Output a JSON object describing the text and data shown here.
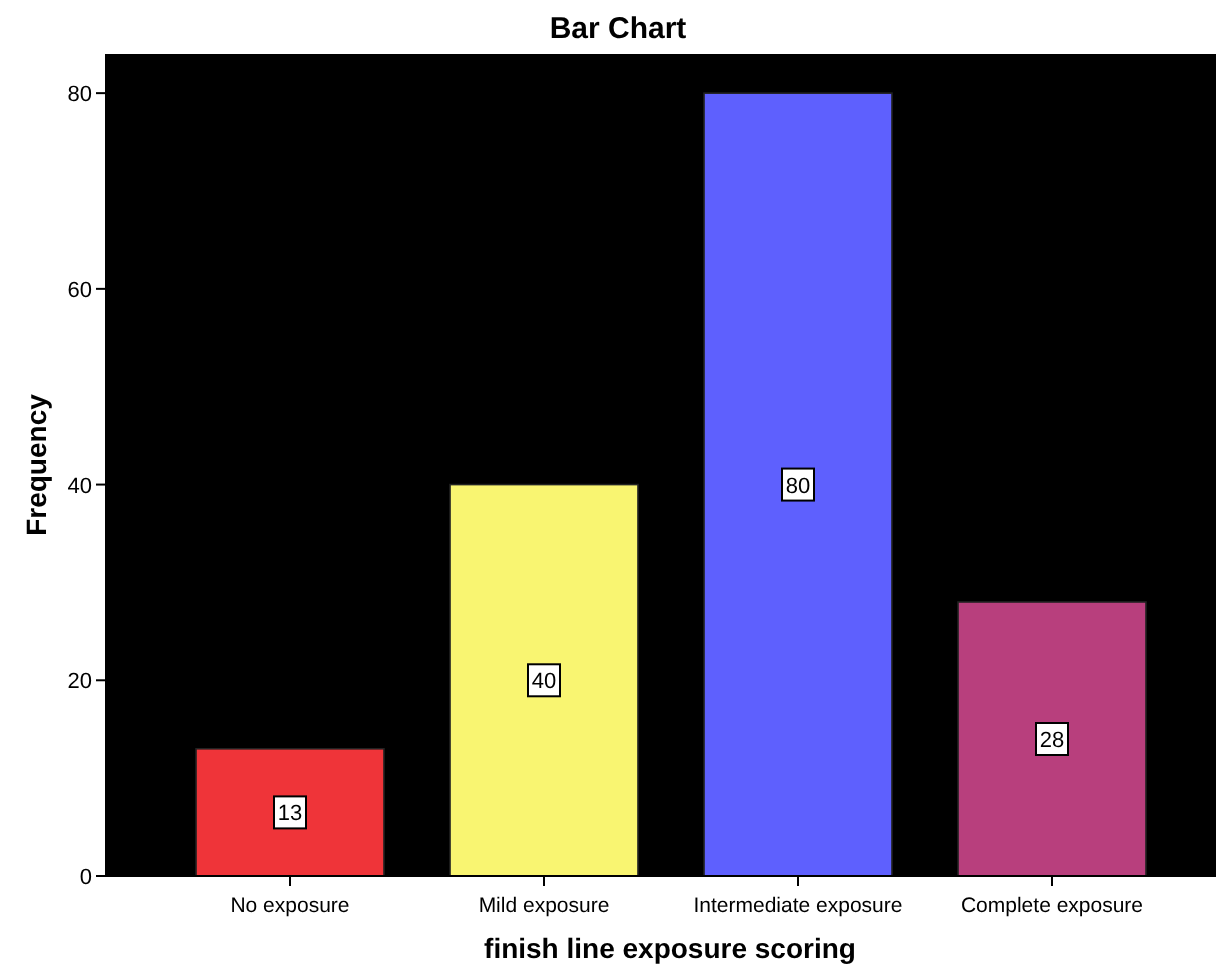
{
  "chart_data": {
    "type": "bar",
    "title": "Bar Chart",
    "xlabel": "finish line exposure scoring",
    "ylabel": "Frequency",
    "categories": [
      "No exposure",
      "Mild exposure",
      "Intermediate exposure",
      "Complete exposure"
    ],
    "values": [
      13,
      40,
      80,
      28
    ],
    "colors": [
      "#ef3439",
      "#f9f571",
      "#5e60fe",
      "#b83f7d"
    ],
    "ylim": [
      0,
      84
    ],
    "yticks": [
      0,
      20,
      40,
      60,
      80
    ],
    "grid": false,
    "data_labels": true
  }
}
